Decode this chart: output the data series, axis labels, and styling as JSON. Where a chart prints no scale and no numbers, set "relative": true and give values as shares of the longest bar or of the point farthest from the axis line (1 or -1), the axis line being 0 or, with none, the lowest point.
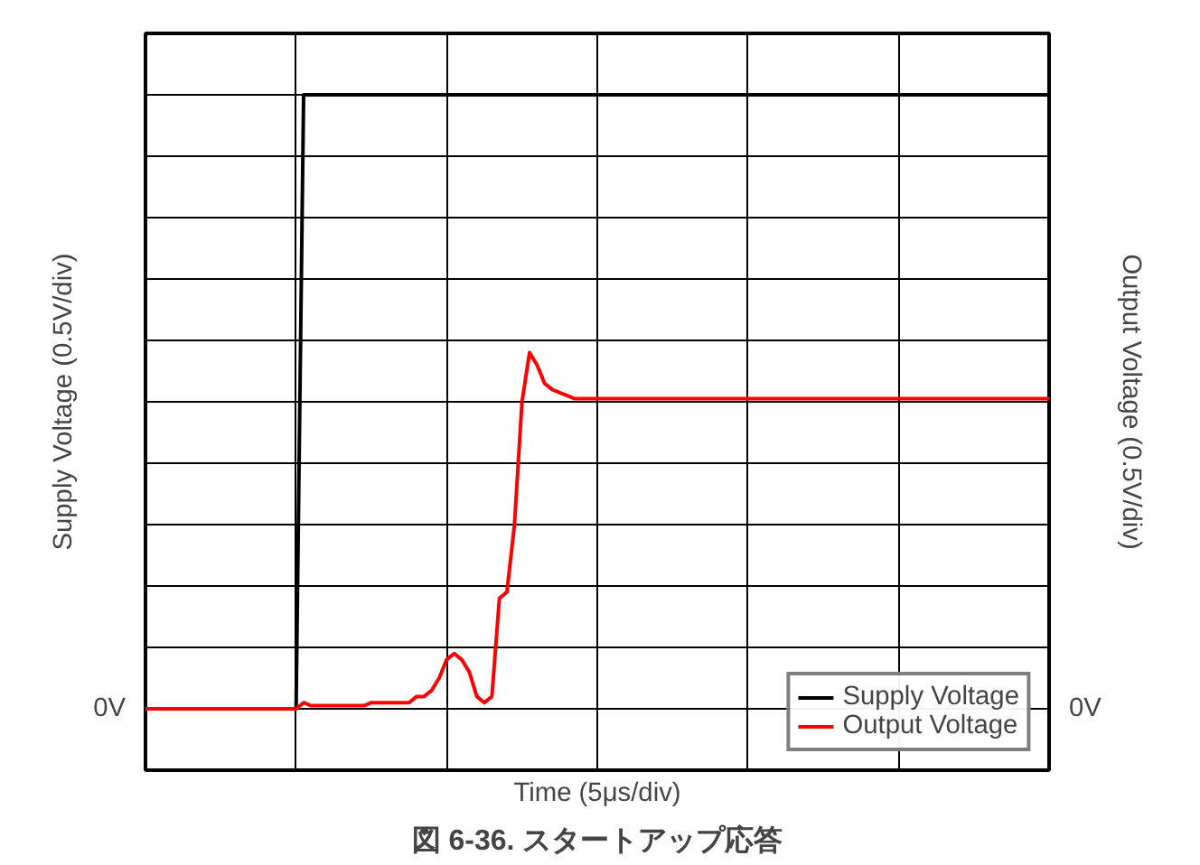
{
  "chart_data": {
    "type": "line",
    "title": "図 6-36. スタートアップ応答",
    "xlabel": "Time (5μs/div)",
    "ylabel": "Supply Voltage (0.5V/div)",
    "y2label": "Output Voltage (0.5V/div)",
    "relative": true,
    "annotations": [
      "0V",
      "0V"
    ],
    "grid": true,
    "legend": "bottom right",
    "categories": [
      null,
      null,
      null,
      null,
      null,
      null,
      null,
      null,
      null,
      null,
      null,
      null,
      null,
      null,
      null,
      null,
      null,
      null,
      null,
      null,
      null,
      null,
      null,
      null,
      null,
      null,
      null,
      null,
      null,
      null,
      null,
      null,
      null,
      null,
      null,
      null,
      null,
      null,
      null,
      null,
      null,
      null,
      null,
      null,
      null,
      null,
      null,
      null,
      null,
      null,
      null,
      null,
      null,
      null,
      null,
      null,
      null,
      null,
      null,
      null,
      null,
      null,
      null,
      null,
      null,
      null,
      null,
      null,
      null,
      null,
      null,
      null,
      null,
      null,
      null,
      null,
      null,
      null,
      null,
      null,
      null,
      null,
      null,
      null,
      null,
      null,
      null,
      null,
      null,
      null,
      null,
      null,
      null,
      null,
      null,
      null,
      null,
      null,
      null,
      null,
      null,
      null,
      null,
      null,
      null,
      null,
      null,
      null,
      null,
      null,
      null,
      null,
      null,
      null,
      null,
      null,
      null,
      null,
      null,
      null,
      null
    ],
    "series": [
      {
        "name": "Supply Voltage",
        "color": "#000000",
        "values": [
          0,
          0,
          0,
          0,
          0,
          0,
          0,
          0,
          0,
          0,
          0,
          0,
          0,
          0,
          0,
          0,
          0,
          0,
          0,
          0,
          0,
          1,
          1,
          1,
          1,
          1,
          1,
          1,
          1,
          1,
          1,
          1,
          1,
          1,
          1,
          1,
          1,
          1,
          1,
          1,
          1,
          1,
          1,
          1,
          1,
          1,
          1,
          1,
          1,
          1,
          1,
          1,
          1,
          1,
          1,
          1,
          1,
          1,
          1,
          1,
          1,
          1,
          1,
          1,
          1,
          1,
          1,
          1,
          1,
          1,
          1,
          1,
          1,
          1,
          1,
          1,
          1,
          1,
          1,
          1,
          1,
          1,
          1,
          1,
          1,
          1,
          1,
          1,
          1,
          1,
          1,
          1,
          1,
          1,
          1,
          1,
          1,
          1,
          1,
          1,
          1,
          1,
          1,
          1,
          1,
          1,
          1,
          1,
          1,
          1,
          1,
          1,
          1,
          1,
          1,
          1,
          1,
          1,
          1,
          1,
          1
        ]
      },
      {
        "name": "Output Voltage",
        "color": "#ff0000",
        "values": [
          0,
          0,
          0,
          0,
          0,
          0,
          0,
          0,
          0,
          0,
          0,
          0,
          0,
          0,
          0,
          0,
          0,
          0,
          0,
          0,
          0,
          0.01,
          0.005,
          0.005,
          0.005,
          0.005,
          0.005,
          0.005,
          0.005,
          0.005,
          0.01,
          0.01,
          0.01,
          0.01,
          0.01,
          0.01,
          0.02,
          0.02,
          0.03,
          0.05,
          0.08,
          0.09,
          0.08,
          0.06,
          0.02,
          0.01,
          0.02,
          0.18,
          0.19,
          0.3,
          0.5,
          0.58,
          0.56,
          0.53,
          0.52,
          0.515,
          0.51,
          0.505,
          0.505,
          0.505,
          0.505,
          0.505,
          0.505,
          0.505,
          0.505,
          0.505,
          0.505,
          0.505,
          0.505,
          0.505,
          0.505,
          0.505,
          0.505,
          0.505,
          0.505,
          0.505,
          0.505,
          0.505,
          0.505,
          0.505,
          0.505,
          0.505,
          0.505,
          0.505,
          0.505,
          0.505,
          0.505,
          0.505,
          0.505,
          0.505,
          0.505,
          0.505,
          0.505,
          0.505,
          0.505,
          0.505,
          0.505,
          0.505,
          0.505,
          0.505,
          0.505,
          0.505,
          0.505,
          0.505,
          0.505,
          0.505,
          0.505,
          0.505,
          0.505,
          0.505,
          0.505,
          0.505,
          0.505,
          0.505,
          0.505,
          0.505,
          0.505,
          0.505,
          0.505,
          0.505,
          0.505
        ]
      }
    ]
  }
}
